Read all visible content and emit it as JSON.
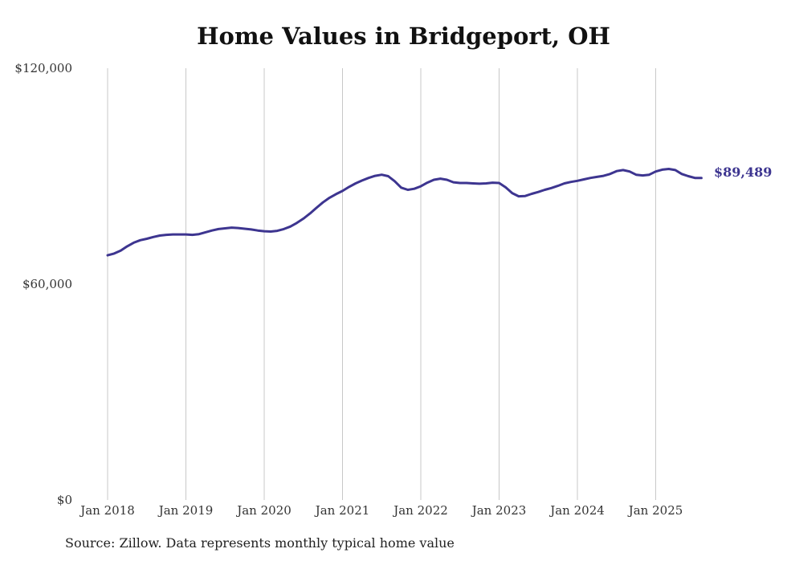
{
  "chart_data": {
    "type": "line",
    "title": "Home Values in Bridgeport, OH",
    "xlabel": "",
    "ylabel": "",
    "x_tick_labels": [
      "Jan 2018",
      "Jan 2019",
      "Jan 2020",
      "Jan 2021",
      "Jan 2022",
      "Jan 2023",
      "Jan 2024",
      "Jan 2025"
    ],
    "y_tick_labels": [
      "$120,000",
      "$60,000",
      "$0"
    ],
    "y_ticks": [
      120000,
      60000,
      0
    ],
    "ylim": [
      0,
      120000
    ],
    "xlim": [
      "2018-01",
      "2025-08"
    ],
    "grid": {
      "vertical": true,
      "horizontal": false
    },
    "line_color": "#3d3590",
    "end_label": "$89,489",
    "series": [
      {
        "x": [
          "2018-01",
          "2018-02",
          "2018-03",
          "2018-04",
          "2018-05",
          "2018-06",
          "2018-07",
          "2018-08",
          "2018-09",
          "2018-10",
          "2018-11",
          "2018-12",
          "2019-01",
          "2019-02",
          "2019-03",
          "2019-04",
          "2019-05",
          "2019-06",
          "2019-07",
          "2019-08",
          "2019-09",
          "2019-10",
          "2019-11",
          "2019-12",
          "2020-01",
          "2020-02",
          "2020-03",
          "2020-04",
          "2020-05",
          "2020-06",
          "2020-07",
          "2020-08",
          "2020-09",
          "2020-10",
          "2020-11",
          "2020-12",
          "2021-01",
          "2021-02",
          "2021-03",
          "2021-04",
          "2021-05",
          "2021-06",
          "2021-07",
          "2021-08",
          "2021-09",
          "2021-10",
          "2021-11",
          "2021-12",
          "2022-01",
          "2022-02",
          "2022-03",
          "2022-04",
          "2022-05",
          "2022-06",
          "2022-07",
          "2022-08",
          "2022-09",
          "2022-10",
          "2022-11",
          "2022-12",
          "2023-01",
          "2023-02",
          "2023-03",
          "2023-04",
          "2023-05",
          "2023-06",
          "2023-07",
          "2023-08",
          "2023-09",
          "2023-10",
          "2023-11",
          "2023-12",
          "2024-01",
          "2024-02",
          "2024-03",
          "2024-04",
          "2024-05",
          "2024-06",
          "2024-07",
          "2024-08",
          "2024-09",
          "2024-10",
          "2024-11",
          "2024-12",
          "2025-01",
          "2025-02",
          "2025-03",
          "2025-04",
          "2025-05",
          "2025-06",
          "2025-07",
          "2025-08"
        ],
        "values": [
          68000,
          68500,
          69300,
          70500,
          71500,
          72200,
          72600,
          73100,
          73500,
          73700,
          73800,
          73800,
          73800,
          73700,
          73900,
          74400,
          74900,
          75300,
          75500,
          75700,
          75600,
          75400,
          75200,
          74900,
          74700,
          74600,
          74800,
          75300,
          76000,
          77000,
          78200,
          79600,
          81200,
          82700,
          84000,
          85000,
          85900,
          87000,
          88000,
          88800,
          89500,
          90100,
          90400,
          90000,
          88600,
          86800,
          86200,
          86500,
          87200,
          88200,
          89000,
          89300,
          89000,
          88300,
          88100,
          88100,
          88000,
          87900,
          88000,
          88200,
          88100,
          86900,
          85300,
          84400,
          84500,
          85100,
          85600,
          86200,
          86700,
          87300,
          88000,
          88400,
          88700,
          89100,
          89500,
          89800,
          90100,
          90600,
          91400,
          91700,
          91300,
          90400,
          90200,
          90400,
          91300,
          91800,
          92000,
          91700,
          90600,
          90000,
          89500,
          89489
        ]
      }
    ]
  },
  "source": "Source: Zillow. Data represents monthly typical home value"
}
